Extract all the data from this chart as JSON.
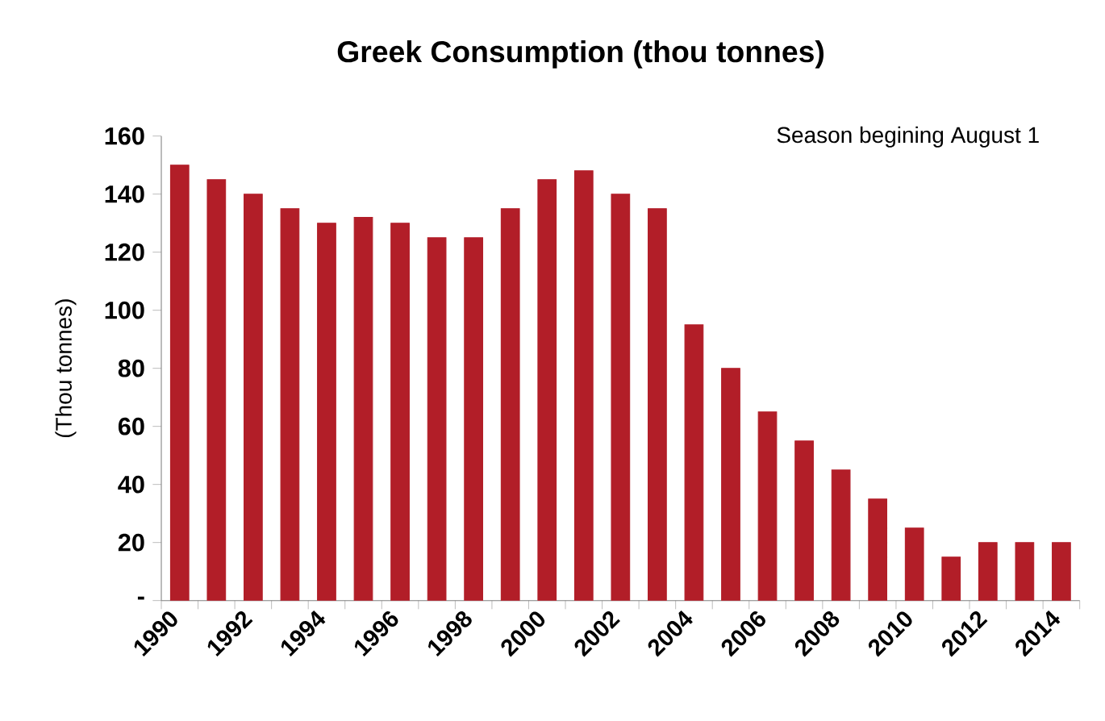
{
  "chart_data": {
    "type": "bar",
    "title": "Greek Consumption (thou tonnes)",
    "ylabel": "(Thou tonnes)",
    "annotations": [
      "Season begining August 1"
    ],
    "categories": [
      "1990",
      null,
      "1992",
      null,
      "1994",
      null,
      "1996",
      null,
      "1998",
      null,
      "2000",
      null,
      "2002",
      null,
      "2004",
      null,
      "2006",
      null,
      "2008",
      null,
      "2010",
      null,
      "2012",
      null,
      "2014"
    ],
    "values": [
      150,
      145,
      140,
      135,
      130,
      132,
      130,
      125,
      125,
      135,
      145,
      148,
      140,
      135,
      95,
      80,
      65,
      55,
      45,
      35,
      25,
      15,
      20,
      20,
      20
    ],
    "color": "#b21e28",
    "ylim": [
      0,
      160
    ],
    "yticks": [
      {
        "value": 0,
        "label": "-"
      },
      20,
      40,
      60,
      80,
      100,
      120,
      140,
      160
    ],
    "grid": false
  }
}
